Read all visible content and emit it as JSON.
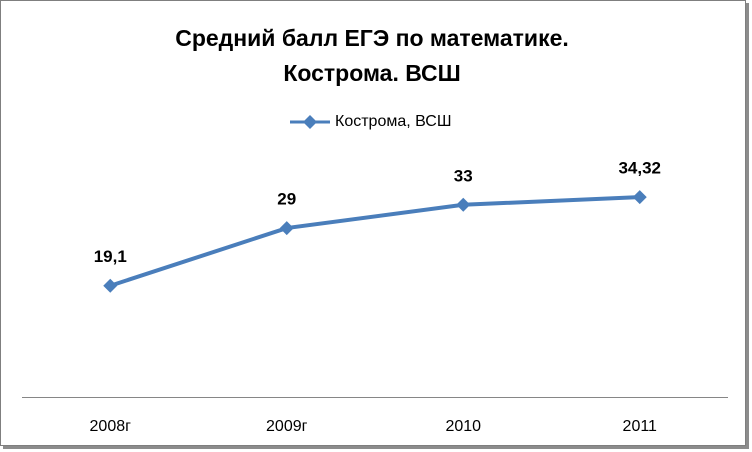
{
  "chart_data": {
    "type": "line",
    "title": [
      "Средний балл ЕГЭ по математике.",
      "Кострома. ВСШ"
    ],
    "categories": [
      "2008г",
      "2009г",
      "2010",
      "2011"
    ],
    "series": [
      {
        "name": "Кострома, ВСШ",
        "color": "#4a7ebb",
        "values": [
          19.1,
          29,
          33,
          34.32
        ],
        "value_labels": [
          "19,1",
          "29",
          "33",
          "34,32"
        ]
      }
    ],
    "ylim": [
      0,
      40
    ],
    "legend": "top"
  }
}
